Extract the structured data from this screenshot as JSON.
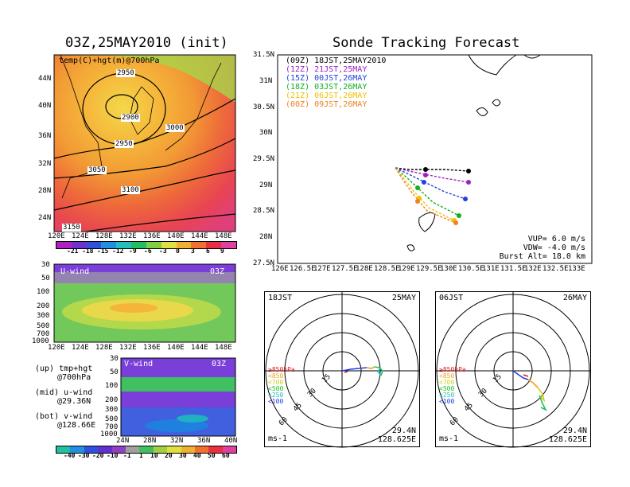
{
  "left_title": "03Z,25MAY2010 (init)",
  "right_title": "Sonde Tracking Forecast",
  "top_map": {
    "label": "temp(C)+hgt(m)@700hPa",
    "y_ticks": [
      "44N",
      "40N",
      "36N",
      "32N",
      "28N",
      "24N"
    ],
    "x_ticks": [
      "120E",
      "124E",
      "128E",
      "132E",
      "136E",
      "140E",
      "144E",
      "148E"
    ],
    "contour_labels": [
      "2950",
      "2900",
      "3000",
      "2950",
      "3050",
      "3100",
      "3150"
    ],
    "colorbar": [
      "-21",
      "-18",
      "-15",
      "-12",
      "-9",
      "-6",
      "-3",
      "0",
      "3",
      "6",
      "9"
    ]
  },
  "u_panel": {
    "label": "U-wind",
    "time": "03Z",
    "y_ticks": [
      "30",
      "50",
      "100",
      "200",
      "300",
      "500",
      "700",
      "1000"
    ],
    "x_ticks": [
      "120E",
      "124E",
      "128E",
      "132E",
      "136E",
      "140E",
      "144E",
      "148E"
    ]
  },
  "v_panel": {
    "label": "V-wind",
    "time": "03Z",
    "y_ticks": [
      "30",
      "50",
      "100",
      "200",
      "300",
      "500",
      "700",
      "1000"
    ],
    "x_ticks": [
      "24N",
      "28N",
      "32N",
      "36N",
      "40N"
    ]
  },
  "wind_colorbar": [
    "-40",
    "-30",
    "-20",
    "-10",
    "-1",
    "1",
    "10",
    "20",
    "30",
    "40",
    "50",
    "60"
  ],
  "notes": [
    {
      "a": "(up) tmp+hgt",
      "b": "@700hPa"
    },
    {
      "a": "(mid) u-wind",
      "b": "@29.36N"
    },
    {
      "a": "(bot) v-wind",
      "b": "@128.66E"
    }
  ],
  "track_map": {
    "y_ticks": [
      "31.5N",
      "31N",
      "30.5N",
      "30N",
      "29.5N",
      "29N",
      "28.5N",
      "28N",
      "27.5N"
    ],
    "x_ticks": [
      "126E",
      "126.5E",
      "127E",
      "127.5E",
      "128E",
      "128.5E",
      "129E",
      "129.5E",
      "130E",
      "130.5E",
      "131E",
      "131.5E",
      "132E",
      "132.5E",
      "133E"
    ],
    "legend": [
      {
        "text": "(09Z) 18JST,25MAY2010",
        "color": "#000000"
      },
      {
        "text": "(12Z) 21JST,25MAY",
        "color": "#a020c0"
      },
      {
        "text": "(15Z) 00JST,26MAY",
        "color": "#2040e0"
      },
      {
        "text": "(18Z) 03JST,26MAY",
        "color": "#10b020"
      },
      {
        "text": "(21Z) 06JST,26MAY",
        "color": "#f0c000"
      },
      {
        "text": "(00Z) 09JST,26MAY",
        "color": "#f08020"
      }
    ],
    "params": [
      "VUP= 6.0 m/s",
      "VDW= -4.0 m/s",
      "Burst Alt= 18.0 km"
    ]
  },
  "hodo1": {
    "time": "18JST",
    "date": "25MAY",
    "lat": "29.4N",
    "lon": "128.625E",
    "unit": "ms-1"
  },
  "hodo2": {
    "time": "06JST",
    "date": "26MAY",
    "lat": "29.4N",
    "lon": "128.625E",
    "unit": "ms-1"
  },
  "hodo_rings": [
    "15",
    "30",
    "45",
    "60"
  ],
  "hodo_levels": [
    {
      "text": "≥850hPa",
      "color": "#e02020"
    },
    {
      "text": "<850",
      "color": "#f0a020"
    },
    {
      "text": "<700",
      "color": "#d0d020"
    },
    {
      "text": "<500",
      "color": "#20c020"
    },
    {
      "text": "<250",
      "color": "#20c0c0"
    },
    {
      "text": "<100",
      "color": "#2040e0"
    }
  ]
}
